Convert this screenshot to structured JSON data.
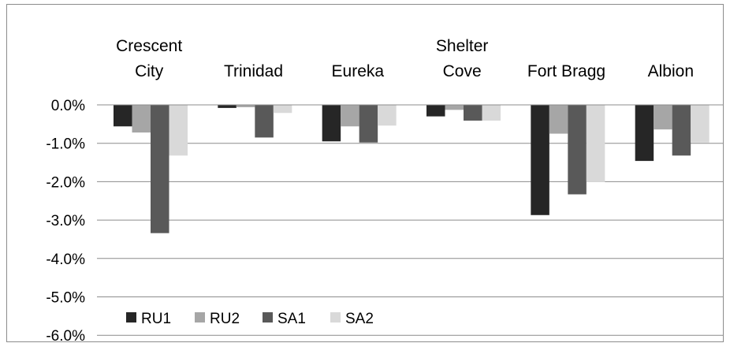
{
  "chart_data": {
    "type": "bar",
    "title": "",
    "xlabel": "",
    "ylabel": "",
    "categories": [
      [
        "Crescent",
        "City"
      ],
      [
        "Trinidad"
      ],
      [
        "Eureka"
      ],
      [
        "Shelter",
        "Cove"
      ],
      [
        "Fort Bragg"
      ],
      [
        "Albion"
      ]
    ],
    "series": [
      {
        "name": "RU1",
        "color": "#262626",
        "values": [
          -0.56,
          -0.08,
          -0.95,
          -0.3,
          -2.87,
          -1.46
        ]
      },
      {
        "name": "RU2",
        "color": "#a6a6a6",
        "values": [
          -0.72,
          -0.06,
          -0.56,
          -0.13,
          -0.75,
          -0.64
        ]
      },
      {
        "name": "SA1",
        "color": "#595959",
        "values": [
          -3.34,
          -0.85,
          -0.98,
          -0.41,
          -2.33,
          -1.32
        ]
      },
      {
        "name": "SA2",
        "color": "#d9d9d9",
        "values": [
          -1.32,
          -0.21,
          -0.54,
          -0.41,
          -2.01,
          -0.98
        ]
      }
    ],
    "y_ticks": [
      "0.0%",
      "-1.0%",
      "-2.0%",
      "-3.0%",
      "-4.0%",
      "-5.0%",
      "-6.0%"
    ],
    "ylim": [
      -6,
      0
    ],
    "y_unit": "%",
    "grid": true,
    "legend_position": "bottom-left"
  }
}
